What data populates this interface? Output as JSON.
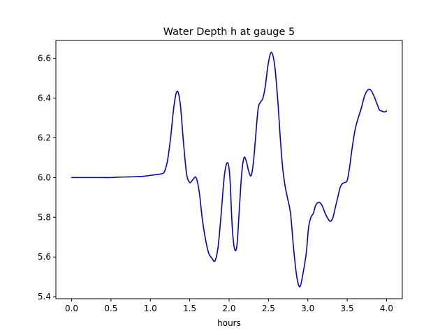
{
  "chart_data": {
    "type": "line",
    "title": "Water Depth h at gauge 5",
    "xlabel": "hours",
    "ylabel": "",
    "xlim": [
      -0.2,
      4.2
    ],
    "ylim": [
      5.39,
      6.69
    ],
    "xticks": [
      0.0,
      0.5,
      1.0,
      1.5,
      2.0,
      2.5,
      3.0,
      3.5,
      4.0
    ],
    "xtick_labels": [
      "0.0",
      "0.5",
      "1.0",
      "1.5",
      "2.0",
      "2.5",
      "3.0",
      "3.5",
      "4.0"
    ],
    "yticks": [
      5.4,
      5.6,
      5.8,
      6.0,
      6.2,
      6.4,
      6.6
    ],
    "ytick_labels": [
      "5.4",
      "5.6",
      "5.8",
      "6.0",
      "6.2",
      "6.4",
      "6.6"
    ],
    "grid": false,
    "series": [
      {
        "color": "#0000cc",
        "x": [
          0.0,
          0.2,
          0.4,
          0.5,
          0.6,
          0.7,
          0.8,
          0.9,
          1.0,
          1.1,
          1.15,
          1.18,
          1.22,
          1.26,
          1.3,
          1.34,
          1.38,
          1.42,
          1.46,
          1.5,
          1.54,
          1.58,
          1.62,
          1.66,
          1.7,
          1.74,
          1.78,
          1.82,
          1.86,
          1.9,
          1.94,
          1.98,
          2.01,
          2.04,
          2.07,
          2.1,
          2.13,
          2.16,
          2.19,
          2.22,
          2.25,
          2.28,
          2.31,
          2.34,
          2.37,
          2.4,
          2.43,
          2.46,
          2.5,
          2.54,
          2.58,
          2.62,
          2.65,
          2.68,
          2.71,
          2.74,
          2.78,
          2.82,
          2.86,
          2.9,
          2.94,
          2.98,
          3.01,
          3.04,
          3.07,
          3.1,
          3.14,
          3.18,
          3.22,
          3.26,
          3.29,
          3.32,
          3.35,
          3.38,
          3.41,
          3.44,
          3.47,
          3.5,
          3.53,
          3.56,
          3.6,
          3.64,
          3.68,
          3.72,
          3.76,
          3.8,
          3.84,
          3.88,
          3.91,
          3.94,
          3.97,
          4.0
        ],
        "y": [
          6.0,
          6.0,
          6.0,
          6.0,
          6.002,
          6.003,
          6.004,
          6.006,
          6.011,
          6.016,
          6.02,
          6.03,
          6.09,
          6.21,
          6.36,
          6.435,
          6.37,
          6.18,
          6.02,
          5.975,
          5.99,
          6.0,
          5.93,
          5.79,
          5.69,
          5.62,
          5.595,
          5.58,
          5.65,
          5.82,
          6.01,
          6.075,
          6.0,
          5.75,
          5.64,
          5.66,
          5.84,
          6.02,
          6.1,
          6.08,
          6.03,
          6.01,
          6.08,
          6.22,
          6.35,
          6.38,
          6.4,
          6.46,
          6.58,
          6.63,
          6.56,
          6.38,
          6.2,
          6.05,
          5.96,
          5.9,
          5.82,
          5.64,
          5.5,
          5.45,
          5.52,
          5.62,
          5.75,
          5.8,
          5.82,
          5.86,
          5.875,
          5.86,
          5.82,
          5.79,
          5.78,
          5.8,
          5.85,
          5.9,
          5.95,
          5.97,
          5.975,
          5.985,
          6.05,
          6.14,
          6.24,
          6.3,
          6.35,
          6.41,
          6.44,
          6.44,
          6.41,
          6.37,
          6.34,
          6.335,
          6.33,
          6.335
        ]
      }
    ]
  }
}
